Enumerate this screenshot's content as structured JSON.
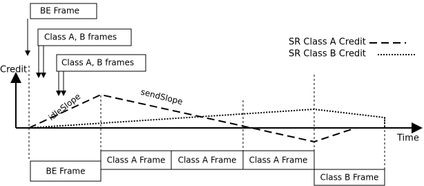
{
  "top_boxes": [
    "BE Frame",
    "Class A, B frames",
    "Class A, B frames"
  ],
  "legend": [
    "SR Class A Credit",
    "SR Class B Credit"
  ],
  "axes": {
    "y_label": "Credit",
    "x_label": "Time"
  },
  "slopes": [
    "idleSlope",
    "sendSlope"
  ],
  "bottom_boxes": [
    "BE Frame",
    "Class A Frame",
    "Class A Frame",
    "Class A Frame",
    "Class B Frame"
  ]
}
